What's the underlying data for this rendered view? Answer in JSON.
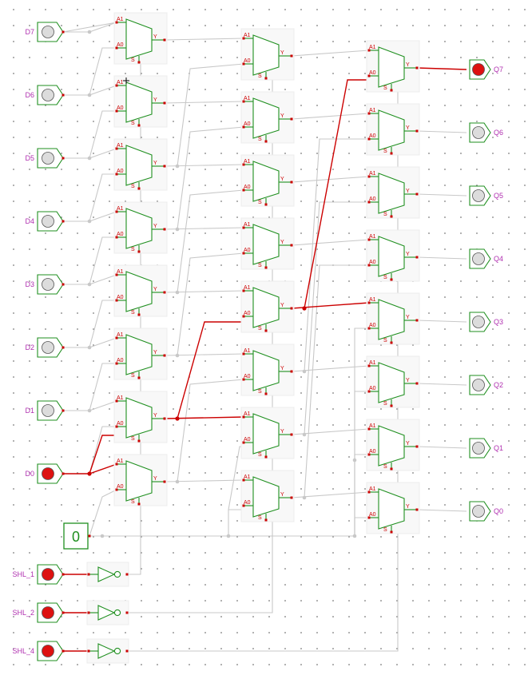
{
  "circuit": {
    "inputs": [
      "D7",
      "D6",
      "D5",
      "D4",
      "D3",
      "D2",
      "D1",
      "D0"
    ],
    "input_states": [
      0,
      0,
      0,
      0,
      0,
      0,
      0,
      1
    ],
    "outputs": [
      "Q7",
      "Q6",
      "Q5",
      "Q4",
      "Q3",
      "Q2",
      "Q1",
      "Q0"
    ],
    "output_states": [
      1,
      0,
      0,
      0,
      0,
      0,
      0,
      0
    ],
    "shift_controls": [
      "SHL_1",
      "SHL_2",
      "SHL_4"
    ],
    "shift_states": [
      1,
      1,
      1
    ],
    "constant_value": "0",
    "mux_labels": {
      "a1": "A1",
      "a0": "A0",
      "s": "S",
      "y": "Y"
    }
  },
  "colors": {
    "wire_idle": "#c8c8c8",
    "wire_active": "#cc0000",
    "component": "#1f8f1f",
    "pin_label": "#b030b0",
    "pin_on": "#dd1111",
    "pin_off": "#dcdcdc"
  }
}
